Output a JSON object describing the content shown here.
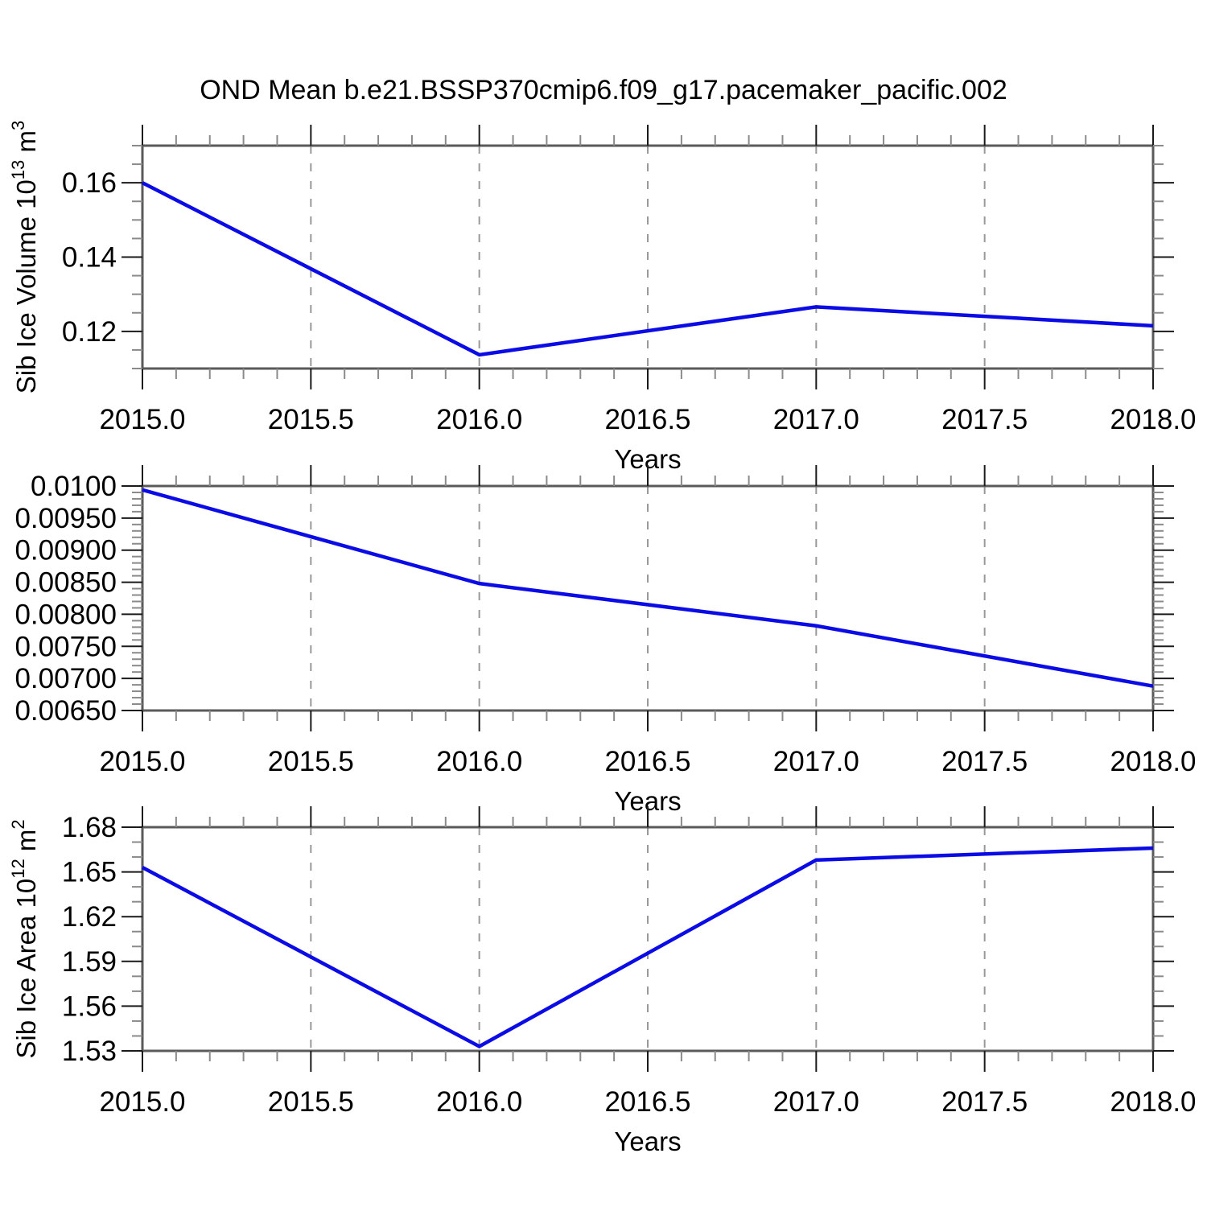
{
  "figure": {
    "title": "OND Mean b.e21.BSSP370cmip6.f09_g17.pacemaker_pacific.002",
    "background": "#ffffff",
    "line_color": "#0b0be6",
    "frame_color": "#5a5a5a",
    "major_tick_color": "#1a1a1a",
    "minor_tick_color": "#8a8a8a",
    "grid_color": "#999999"
  },
  "chart_data": [
    {
      "type": "line",
      "name": "sib-ice-volume",
      "xlabel": "Years",
      "ylabel": "Sib Ice Volume 10^13 m^3",
      "ylabel_parts": [
        {
          "text": "Sib Ice Volume 10",
          "sup": false
        },
        {
          "text": "13",
          "sup": true
        },
        {
          "text": " m",
          "sup": false
        },
        {
          "text": "3",
          "sup": true
        }
      ],
      "x": [
        2015.0,
        2016.0,
        2017.0,
        2018.0
      ],
      "values": [
        0.16,
        0.1137,
        0.1266,
        0.1215
      ],
      "xlim": [
        2015.0,
        2018.0
      ],
      "ylim": [
        0.11,
        0.17
      ],
      "xticks_major": [
        2015.0,
        2015.5,
        2016.0,
        2016.5,
        2017.0,
        2017.5,
        2018.0
      ],
      "xtick_labels": [
        "2015.0",
        "2015.5",
        "2016.0",
        "2016.5",
        "2017.0",
        "2017.5",
        "2018.0"
      ],
      "xtick_minor_step": 0.1,
      "yticks_major": [
        0.12,
        0.14,
        0.16
      ],
      "ytick_labels": [
        "0.12",
        "0.14",
        "0.16"
      ],
      "ytick_minor_step": 0.005,
      "gridlines_x": [
        2015.5,
        2016.0,
        2016.5,
        2017.0,
        2017.5
      ],
      "grid": "vertical-dashed",
      "legend": null
    },
    {
      "type": "line",
      "name": "sib-ice-middle",
      "xlabel": "Years",
      "ylabel": "",
      "ylabel_parts": [],
      "x": [
        2015.0,
        2016.0,
        2017.0,
        2018.0
      ],
      "values": [
        0.00994,
        0.00848,
        0.00782,
        0.00688
      ],
      "xlim": [
        2015.0,
        2018.0
      ],
      "ylim": [
        0.0065,
        0.01
      ],
      "xticks_major": [
        2015.0,
        2015.5,
        2016.0,
        2016.5,
        2017.0,
        2017.5,
        2018.0
      ],
      "xtick_labels": [
        "2015.0",
        "2015.5",
        "2016.0",
        "2016.5",
        "2017.0",
        "2017.5",
        "2018.0"
      ],
      "xtick_minor_step": 0.1,
      "yticks_major": [
        0.0065,
        0.007,
        0.0075,
        0.008,
        0.0085,
        0.009,
        0.0095,
        0.01
      ],
      "ytick_labels": [
        "0.00650",
        "0.00700",
        "0.00750",
        "0.00800",
        "0.00850",
        "0.00900",
        "0.00950",
        "0.0100"
      ],
      "ytick_minor_step": 0.0001,
      "gridlines_x": [
        2015.5,
        2016.0,
        2016.5,
        2017.0,
        2017.5
      ],
      "grid": "vertical-dashed",
      "legend": null
    },
    {
      "type": "line",
      "name": "sib-ice-area",
      "xlabel": "Years",
      "ylabel": "Sib Ice Area 10^12 m^2",
      "ylabel_parts": [
        {
          "text": "Sib Ice Area 10",
          "sup": false
        },
        {
          "text": "12",
          "sup": true
        },
        {
          "text": " m",
          "sup": false
        },
        {
          "text": "2",
          "sup": true
        }
      ],
      "x": [
        2015.0,
        2016.0,
        2017.0,
        2018.0
      ],
      "values": [
        1.653,
        1.533,
        1.658,
        1.666
      ],
      "xlim": [
        2015.0,
        2018.0
      ],
      "ylim": [
        1.53,
        1.68
      ],
      "xticks_major": [
        2015.0,
        2015.5,
        2016.0,
        2016.5,
        2017.0,
        2017.5,
        2018.0
      ],
      "xtick_labels": [
        "2015.0",
        "2015.5",
        "2016.0",
        "2016.5",
        "2017.0",
        "2017.5",
        "2018.0"
      ],
      "xtick_minor_step": 0.1,
      "yticks_major": [
        1.53,
        1.56,
        1.59,
        1.62,
        1.65,
        1.68
      ],
      "ytick_labels": [
        "1.53",
        "1.56",
        "1.59",
        "1.62",
        "1.65",
        "1.68"
      ],
      "ytick_minor_step": 0.01,
      "gridlines_x": [
        2015.5,
        2016.0,
        2016.5,
        2017.0,
        2017.5
      ],
      "grid": "vertical-dashed",
      "legend": null
    }
  ]
}
